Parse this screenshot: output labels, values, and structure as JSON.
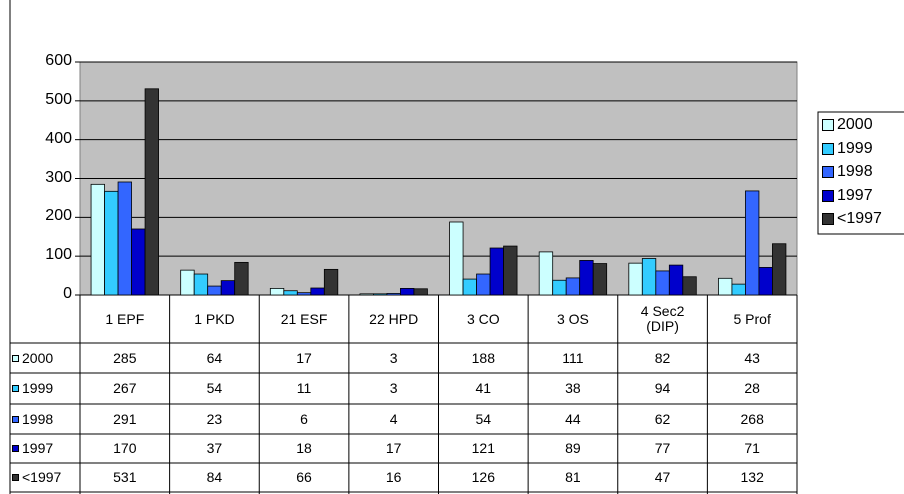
{
  "chart_data": {
    "type": "bar",
    "categories": [
      "1 EPF",
      "1 PKD",
      "21 ESF",
      "22 HPD",
      "3 CO",
      "3 OS",
      "4 Sec2 (DIP)",
      "5 Prof"
    ],
    "series": [
      {
        "name": "2000",
        "color": "#ccffff",
        "values": [
          285,
          64,
          17,
          3,
          188,
          111,
          82,
          43
        ]
      },
      {
        "name": "1999",
        "color": "#33ccff",
        "values": [
          267,
          54,
          11,
          3,
          41,
          38,
          94,
          28
        ]
      },
      {
        "name": "1998",
        "color": "#3366ff",
        "values": [
          291,
          23,
          6,
          4,
          54,
          44,
          62,
          268
        ]
      },
      {
        "name": "1997",
        "color": "#0000cc",
        "values": [
          170,
          37,
          18,
          17,
          121,
          89,
          77,
          71
        ]
      },
      {
        "name": "<1997",
        "color": "#333333",
        "values": [
          531,
          84,
          66,
          16,
          126,
          81,
          47,
          132
        ]
      }
    ],
    "ylim": [
      0,
      600
    ],
    "yticks": [
      0,
      100,
      200,
      300,
      400,
      500,
      600
    ],
    "grid": true,
    "plot_background": "#c0c0c0",
    "legend": "right",
    "data_table": true
  }
}
